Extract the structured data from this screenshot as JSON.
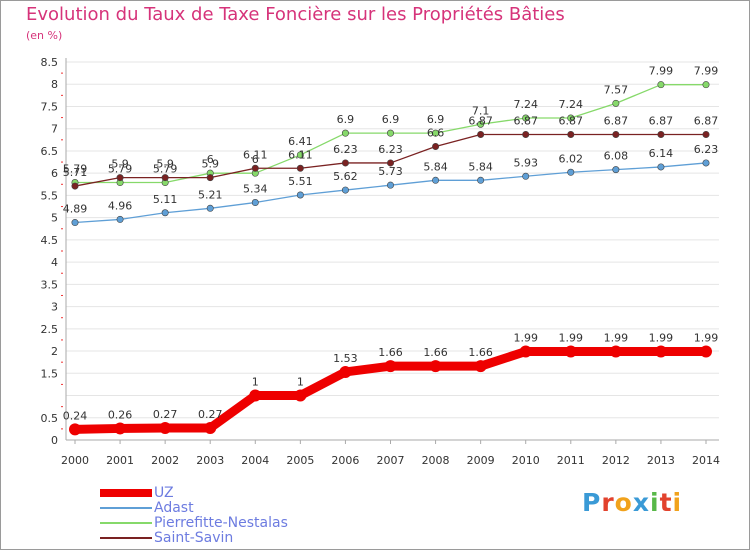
{
  "title": "Evolution du Taux de Taxe Foncière sur les Propriétés Bâties",
  "unit_label": "(en %)",
  "logo": "Proxiti",
  "colors": {
    "uz": "#ee0000",
    "adast": "#5f9fd6",
    "pierrefitte": "#86d96a",
    "saint_savin": "#7a2222",
    "axis_text": "#333333",
    "grid": "#e5e5e5"
  },
  "chart_data": {
    "type": "line",
    "title": "Evolution du Taux de Taxe Foncière sur les Propriétés Bâties",
    "ylabel": "(en %)",
    "xlabel": "",
    "ylim": [
      0,
      8.5
    ],
    "yticks": [
      0,
      0.5,
      1,
      1.5,
      2,
      2.5,
      3,
      3.5,
      4,
      4.5,
      5,
      5.5,
      6,
      6.5,
      7,
      7.5,
      8,
      8.5
    ],
    "yticks_labeled": [
      0,
      0.5,
      1.5,
      2,
      2.5,
      3,
      3.5,
      4,
      4.5,
      5,
      5.5,
      6,
      6.5,
      7,
      7.5,
      8,
      8.5
    ],
    "x": [
      "2000",
      "2001",
      "2002",
      "2003",
      "2004",
      "2005",
      "2006",
      "2007",
      "2008",
      "2009",
      "2010",
      "2011",
      "2012",
      "2013",
      "2014"
    ],
    "series": [
      {
        "key": "uz",
        "name": "UZ",
        "values": [
          0.24,
          0.26,
          0.27,
          0.27,
          1,
          1,
          1.53,
          1.66,
          1.66,
          1.66,
          1.99,
          1.99,
          1.99,
          1.99,
          1.99
        ]
      },
      {
        "key": "adast",
        "name": "Adast",
        "values": [
          4.89,
          4.96,
          5.11,
          5.21,
          5.34,
          5.51,
          5.62,
          5.73,
          5.84,
          5.84,
          5.93,
          6.02,
          6.08,
          6.14,
          6.23
        ]
      },
      {
        "key": "pierrefitte",
        "name": "Pierrefitte-Nestalas",
        "values": [
          5.79,
          5.79,
          5.79,
          6,
          6,
          6.41,
          6.9,
          6.9,
          6.9,
          7.1,
          7.24,
          7.24,
          7.57,
          7.99,
          7.99
        ]
      },
      {
        "key": "saint_savin",
        "name": "Saint-Savin",
        "values": [
          5.71,
          5.9,
          5.9,
          5.9,
          6.11,
          6.11,
          6.23,
          6.23,
          6.6,
          6.87,
          6.87,
          6.87,
          6.87,
          6.87,
          6.87
        ]
      }
    ],
    "labels": {
      "uz": [
        "0.24",
        "0.26",
        "0.27",
        "0.27",
        "1",
        "1",
        "1.53",
        "1.66",
        "1.66",
        "1.66",
        "1.99",
        "1.99",
        "1.99",
        "1.99",
        "1.99"
      ],
      "adast": [
        "4.89",
        "4.96",
        "5.11",
        "5.21",
        "5.34",
        "5.51",
        "5.62",
        "5.73",
        "5.84",
        "5.84",
        "5.93",
        "6.02",
        "6.08",
        "6.14",
        "6.23"
      ],
      "pierrefitte": [
        "5.79",
        "5.79",
        "5.79",
        "6",
        "6",
        "6.41",
        "6.9",
        "6.9",
        "6.9",
        "7.1",
        "7.24",
        "7.24",
        "7.57",
        "7.99",
        "7.99"
      ],
      "saint_savin": [
        "5.71",
        "5.9",
        "5.9",
        "5.9",
        "6.11",
        "6.11",
        "6.23",
        "6.23",
        "6.6",
        "6.87",
        "6.87",
        "6.87",
        "6.87",
        "6.87",
        "6.87"
      ]
    }
  }
}
